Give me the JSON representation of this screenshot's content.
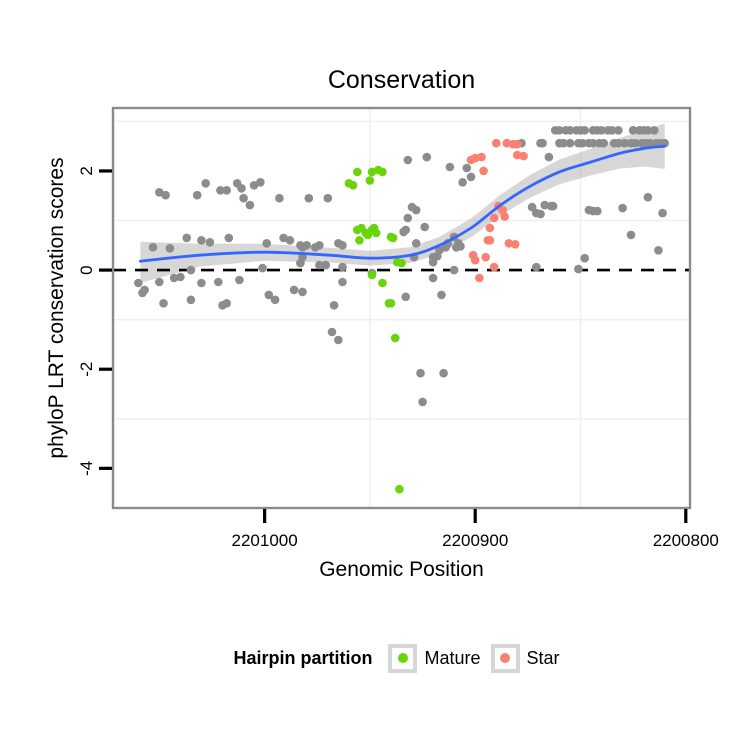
{
  "title": "Conservation",
  "axes": {
    "x": {
      "label": "Genomic Position",
      "ticks": [
        2201000,
        2200900,
        2200800
      ],
      "tick_labels": [
        "2201000",
        "2200900",
        "2200800"
      ],
      "domain": [
        2201072,
        2200798
      ],
      "reversed": true,
      "minor_gridlines": [
        2200950,
        2200850
      ]
    },
    "y": {
      "label": "phyloP LRT conservation scores",
      "ticks": [
        2,
        0,
        -2,
        -4
      ],
      "tick_labels": [
        "2",
        "0",
        "-2",
        "-4"
      ],
      "domain": [
        -4.8,
        3.27
      ],
      "minor_gridlines": [
        3,
        1,
        -1,
        -3
      ]
    }
  },
  "reference_line": {
    "y": 0,
    "style": "dashed",
    "color": "#000000"
  },
  "legend": {
    "title": "Hairpin partition",
    "items": [
      {
        "label": "Mature",
        "color": "#68D50A"
      },
      {
        "label": "Star",
        "color": "#FA8072"
      }
    ]
  },
  "colors": {
    "unpartitioned_points": "#8C8C8C",
    "mature_points": "#68D50A",
    "star_points": "#FA8072",
    "smooth_line": "#3366FF",
    "ribbon": "rgba(140,140,140,0.35)",
    "gridline": "#f0f0f0",
    "panel_border": "#8a8a8a"
  },
  "chart_data": {
    "type": "scatter",
    "xlabel": "Genomic Position",
    "ylabel": "phyloP LRT conservation scores",
    "title": "Conservation",
    "x_reversed": true,
    "xlim": [
      2201072,
      2200798
    ],
    "ylim": [
      -4.8,
      3.27
    ],
    "grid": "minor-only",
    "legend_position": "bottom",
    "series": [
      {
        "name": "Unpartitioned",
        "color": "#8C8C8C",
        "points": [
          [
            2201060,
            -0.26
          ],
          [
            2201058,
            -0.46
          ],
          [
            2201057,
            -0.4
          ],
          [
            2201053,
            0.46
          ],
          [
            2201050,
            1.57
          ],
          [
            2201050,
            -0.24
          ],
          [
            2201048,
            -0.67
          ],
          [
            2201047,
            1.51
          ],
          [
            2201045,
            0.44
          ],
          [
            2201043,
            -0.16
          ],
          [
            2201040,
            -0.14
          ],
          [
            2201037,
            0.65
          ],
          [
            2201035,
            0.0
          ],
          [
            2201035,
            -0.6
          ],
          [
            2201032,
            1.51
          ],
          [
            2201030,
            0.6
          ],
          [
            2201030,
            -0.26
          ],
          [
            2201028,
            1.75
          ],
          [
            2201026,
            0.56
          ],
          [
            2201022,
            -0.24
          ],
          [
            2201021,
            1.61
          ],
          [
            2201020,
            -0.71
          ],
          [
            2201018,
            1.61
          ],
          [
            2201018,
            -0.67
          ],
          [
            2201017,
            0.65
          ],
          [
            2201013,
            1.75
          ],
          [
            2201012,
            -0.2
          ],
          [
            2201011,
            1.65
          ],
          [
            2201010,
            1.45
          ],
          [
            2201007,
            1.31
          ],
          [
            2201005,
            1.71
          ],
          [
            2201002,
            1.77
          ],
          [
            2201001,
            0.04
          ],
          [
            2200999,
            0.54
          ],
          [
            2200998,
            -0.5
          ],
          [
            2200995,
            -0.6
          ],
          [
            2200993,
            1.45
          ],
          [
            2200991,
            0.65
          ],
          [
            2200988,
            0.6
          ],
          [
            2200986,
            -0.4
          ],
          [
            2200983,
            0.5
          ],
          [
            2200983,
            0.14
          ],
          [
            2200982,
            -0.44
          ],
          [
            2200979,
            1.45
          ],
          [
            2200982,
            0.46
          ],
          [
            2200982,
            0.26
          ],
          [
            2200980,
            0.5
          ],
          [
            2200976,
            0.46
          ],
          [
            2200974,
            0.5
          ],
          [
            2200974,
            0.1
          ],
          [
            2200971,
            0.1
          ],
          [
            2200970,
            1.45
          ],
          [
            2200968,
            -1.25
          ],
          [
            2200967,
            -0.71
          ],
          [
            2200965,
            0.54
          ],
          [
            2200965,
            -1.41
          ],
          [
            2200963,
            0.06
          ],
          [
            2200963,
            0.5
          ],
          [
            2200963,
            -0.24
          ],
          [
            2200949,
            -0.06
          ],
          [
            2200934,
            0.77
          ],
          [
            2200933,
            0.81
          ],
          [
            2200933,
            -0.54
          ],
          [
            2200932,
            2.22
          ],
          [
            2200932,
            1.05
          ],
          [
            2200930,
            1.27
          ],
          [
            2200928,
            1.21
          ],
          [
            2200928,
            0.54
          ],
          [
            2200929,
            0.26
          ],
          [
            2200926,
            -2.08
          ],
          [
            2200925,
            -2.66
          ],
          [
            2200924,
            0.87
          ],
          [
            2200923,
            2.28
          ],
          [
            2200920,
            0.16
          ],
          [
            2200920,
            0.26
          ],
          [
            2200920,
            -0.16
          ],
          [
            2200918,
            0.28
          ],
          [
            2200917,
            0.4
          ],
          [
            2200916,
            -0.5
          ],
          [
            2200915,
            -2.08
          ],
          [
            2200914,
            0.46
          ],
          [
            2200913,
            0.54
          ],
          [
            2200912,
            2.08
          ],
          [
            2200910,
            0.67
          ],
          [
            2200910,
            0.0
          ],
          [
            2200909,
            0.46
          ],
          [
            2200908,
            0.54
          ],
          [
            2200907,
            0.48
          ],
          [
            2200906,
            1.77
          ],
          [
            2200904,
            2.06
          ],
          [
            2200902,
            1.88
          ],
          [
            2200878,
            2.56
          ],
          [
            2200873,
            1.27
          ],
          [
            2200871,
            1.15
          ],
          [
            2200869,
            1.13
          ],
          [
            2200867,
            1.31
          ],
          [
            2200864,
            1.29
          ],
          [
            2200863,
            1.29
          ],
          [
            2200871,
            0.06
          ],
          [
            2200865,
            2.28
          ],
          [
            2200869,
            2.56
          ],
          [
            2200868,
            2.56
          ],
          [
            2200851,
            0.02
          ],
          [
            2200848,
            0.24
          ],
          [
            2200846,
            1.21
          ],
          [
            2200844,
            1.19
          ],
          [
            2200842,
            1.19
          ],
          [
            2200830,
            1.25
          ],
          [
            2200826,
            0.71
          ],
          [
            2200818,
            1.47
          ],
          [
            2200813,
            0.4
          ],
          [
            2200811,
            1.15
          ],
          [
            2200862,
            2.82
          ],
          [
            2200860,
            2.82
          ],
          [
            2200857,
            2.82
          ],
          [
            2200855,
            2.82
          ],
          [
            2200852,
            2.82
          ],
          [
            2200850,
            2.82
          ],
          [
            2200848,
            2.82
          ],
          [
            2200844,
            2.82
          ],
          [
            2200842,
            2.82
          ],
          [
            2200840,
            2.82
          ],
          [
            2200837,
            2.82
          ],
          [
            2200835,
            2.82
          ],
          [
            2200832,
            2.82
          ],
          [
            2200825,
            2.82
          ],
          [
            2200822,
            2.82
          ],
          [
            2200820,
            2.82
          ],
          [
            2200818,
            2.82
          ],
          [
            2200815,
            2.82
          ],
          [
            2200860,
            2.56
          ],
          [
            2200858,
            2.56
          ],
          [
            2200855,
            2.56
          ],
          [
            2200851,
            2.56
          ],
          [
            2200849,
            2.56
          ],
          [
            2200846,
            2.56
          ],
          [
            2200844,
            2.56
          ],
          [
            2200841,
            2.56
          ],
          [
            2200839,
            2.56
          ],
          [
            2200834,
            2.56
          ],
          [
            2200832,
            2.56
          ],
          [
            2200829,
            2.56
          ],
          [
            2200826,
            2.56
          ],
          [
            2200824,
            2.56
          ],
          [
            2200821,
            2.56
          ],
          [
            2200819,
            2.56
          ],
          [
            2200817,
            2.56
          ],
          [
            2200814,
            2.56
          ],
          [
            2200812,
            2.56
          ],
          [
            2200810,
            2.56
          ]
        ]
      },
      {
        "name": "Mature",
        "color": "#68D50A",
        "points": [
          [
            2200960,
            1.75
          ],
          [
            2200958,
            1.71
          ],
          [
            2200956,
            1.98
          ],
          [
            2200950,
            1.81
          ],
          [
            2200949,
            1.98
          ],
          [
            2200946,
            2.02
          ],
          [
            2200944,
            1.98
          ],
          [
            2200956,
            0.81
          ],
          [
            2200955,
            0.6
          ],
          [
            2200954,
            0.85
          ],
          [
            2200952,
            0.75
          ],
          [
            2200951,
            0.71
          ],
          [
            2200949,
            0.81
          ],
          [
            2200948,
            0.85
          ],
          [
            2200947,
            0.75
          ],
          [
            2200940,
            0.67
          ],
          [
            2200939,
            0.65
          ],
          [
            2200937,
            0.16
          ],
          [
            2200935,
            0.14
          ],
          [
            2200949,
            -0.1
          ],
          [
            2200944,
            -0.26
          ],
          [
            2200941,
            -0.67
          ],
          [
            2200940,
            -0.67
          ],
          [
            2200938,
            -1.37
          ],
          [
            2200936,
            -4.42
          ]
        ]
      },
      {
        "name": "Star",
        "color": "#FA8072",
        "points": [
          [
            2200902,
            2.22
          ],
          [
            2200900,
            2.26
          ],
          [
            2200897,
            2.28
          ],
          [
            2200896,
            2.0
          ],
          [
            2200890,
            2.56
          ],
          [
            2200885,
            2.56
          ],
          [
            2200882,
            2.54
          ],
          [
            2200880,
            2.54
          ],
          [
            2200880,
            2.32
          ],
          [
            2200877,
            2.3
          ],
          [
            2200894,
            0.6
          ],
          [
            2200893,
            0.85
          ],
          [
            2200893,
            0.6
          ],
          [
            2200891,
            1.05
          ],
          [
            2200889,
            1.29
          ],
          [
            2200887,
            1.21
          ],
          [
            2200886,
            1.08
          ],
          [
            2200884,
            0.54
          ],
          [
            2200881,
            0.52
          ],
          [
            2200901,
            0.3
          ],
          [
            2200900,
            0.2
          ],
          [
            2200895,
            0.26
          ],
          [
            2200891,
            0.06
          ],
          [
            2200898,
            -0.16
          ]
        ]
      }
    ],
    "smooth": {
      "name": "loess fit with confidence ribbon",
      "color": "#3366FF",
      "ribbon_color": "rgba(140,140,140,0.35)",
      "points": [
        [
          2201059,
          0.18,
          -0.26,
          0.57
        ],
        [
          2201031,
          0.3,
          0.07,
          0.53
        ],
        [
          2201000,
          0.36,
          0.19,
          0.53
        ],
        [
          2200969,
          0.3,
          0.15,
          0.45
        ],
        [
          2200950,
          0.24,
          0.09,
          0.39
        ],
        [
          2200931,
          0.3,
          0.14,
          0.46
        ],
        [
          2200917,
          0.5,
          0.33,
          0.67
        ],
        [
          2200902,
          0.85,
          0.66,
          1.04
        ],
        [
          2200888,
          1.31,
          1.1,
          1.52
        ],
        [
          2200874,
          1.69,
          1.46,
          1.92
        ],
        [
          2200860,
          1.98,
          1.73,
          2.23
        ],
        [
          2200845,
          2.18,
          1.91,
          2.45
        ],
        [
          2200831,
          2.36,
          2.05,
          2.67
        ],
        [
          2200819,
          2.46,
          2.09,
          2.83
        ],
        [
          2200810,
          2.5,
          2.04,
          2.96
        ]
      ]
    }
  }
}
